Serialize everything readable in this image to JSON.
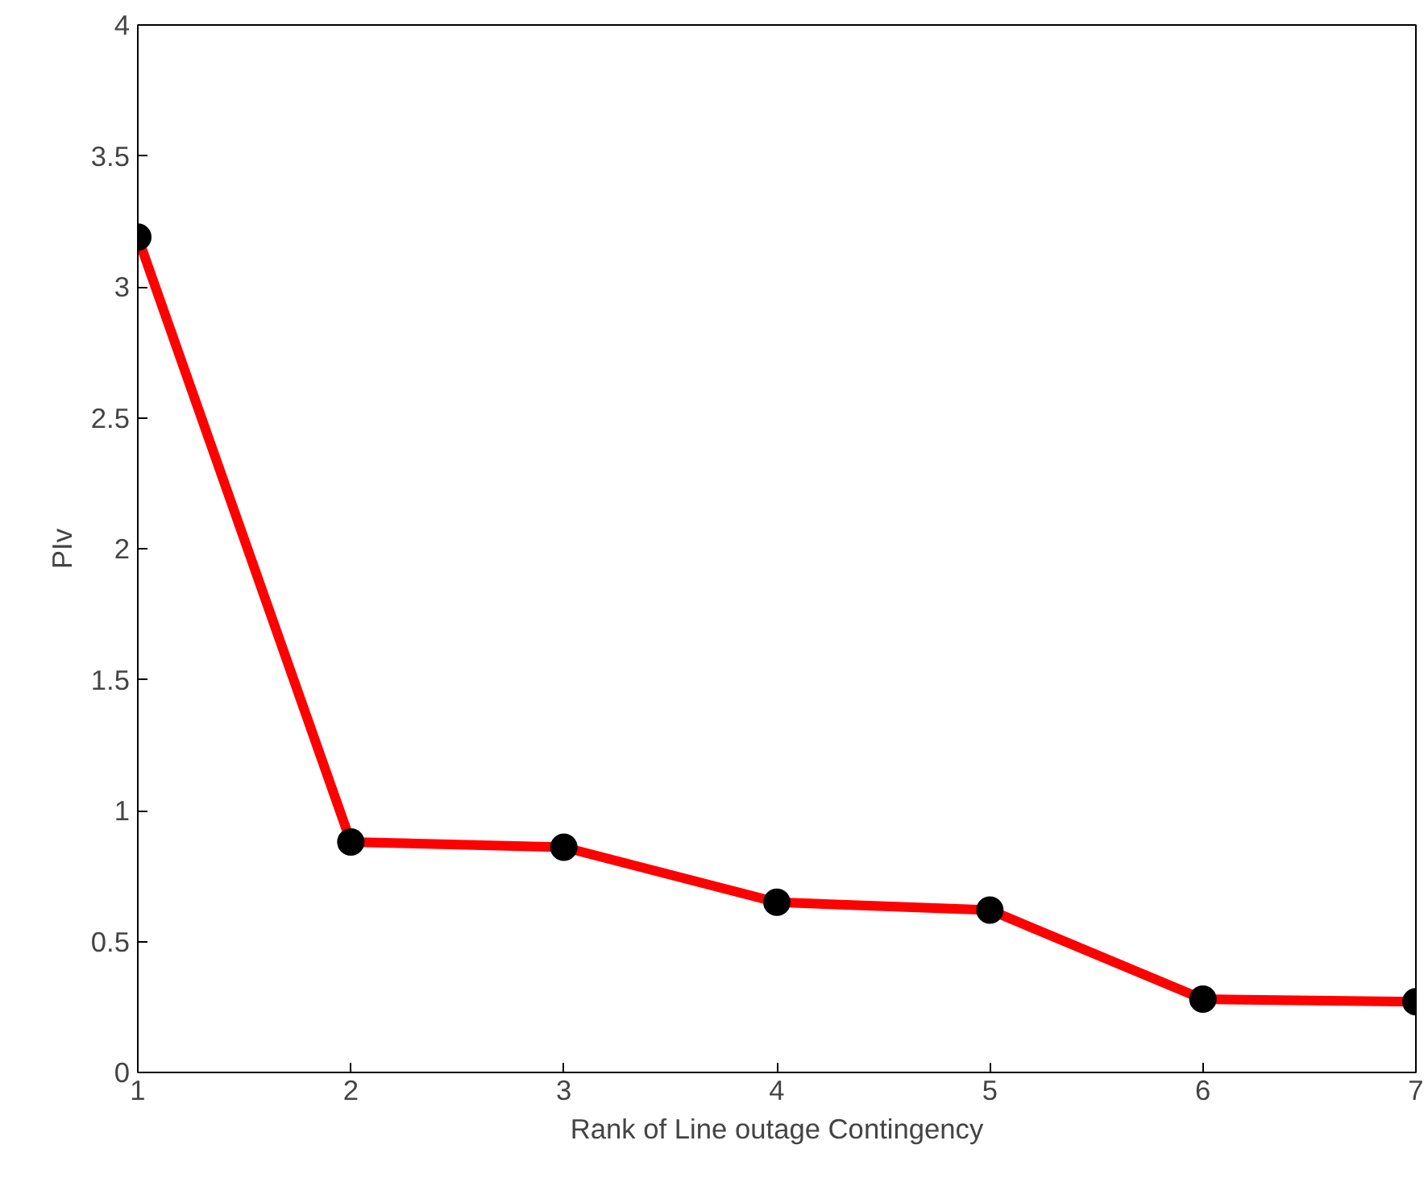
{
  "chart_data": {
    "type": "line",
    "xlabel": "Rank of Line outage Contingency",
    "ylabel": "PIv",
    "x": [
      1,
      2,
      3,
      4,
      5,
      6,
      7
    ],
    "series": [
      {
        "color": "#ff0000",
        "values": [
          3.19,
          0.88,
          0.86,
          0.65,
          0.62,
          0.28,
          0.27
        ]
      }
    ],
    "xlim": [
      1,
      7
    ],
    "ylim": [
      0,
      4
    ],
    "xticks": [
      1,
      2,
      3,
      4,
      5,
      6,
      7
    ],
    "yticks": [
      0,
      {
        "value": 0.5,
        "label": "0.5"
      },
      1,
      {
        "value": 1.5,
        "label": "1.5"
      },
      2,
      {
        "value": 2.5,
        "label": "2.5"
      },
      3,
      {
        "value": 3.5,
        "label": "3.5"
      },
      4
    ],
    "grid": false,
    "marker": "circle",
    "line_style": "solid"
  }
}
